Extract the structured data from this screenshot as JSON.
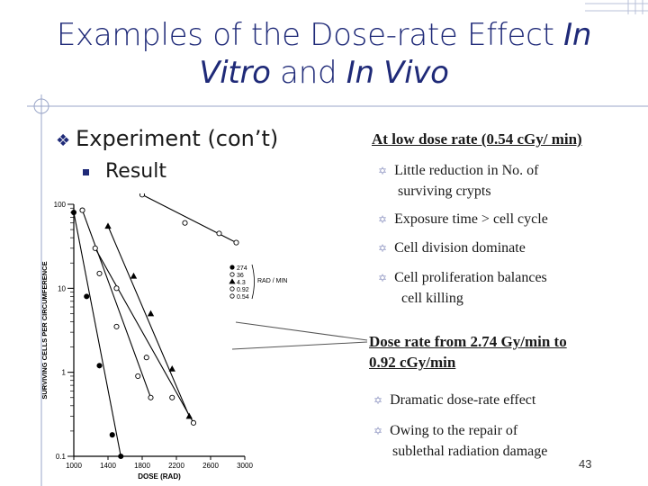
{
  "slide": {
    "title_part1": "Examples of the Dose-rate Effect ",
    "title_in": "In",
    "title_vitro": "Vitro",
    "title_and": " and ",
    "title_invivo": "In Vivo",
    "bullet_level1": "Experiment (con’t)",
    "bullet_level2": "Result",
    "low_heading": "At low dose rate (0.54 cGy/ min)",
    "low_points": [
      "Little reduction in No. of",
      "surviving crypts",
      "Exposure time > cell cycle",
      "Cell division dominate",
      "Cell proliferation balances",
      "cell killing"
    ],
    "mid_heading_line1": "Dose rate from 2.74 Gy/min to",
    "mid_heading_line2": "0.92 cGy/min",
    "mid_points": [
      "Dramatic dose-rate effect",
      "Owing to the repair of",
      "sublethal radiation damage"
    ],
    "page_number": "43"
  },
  "chart_data": {
    "type": "scatter",
    "title": "",
    "xlabel": "DOSE (RAD)",
    "ylabel": "SURVIVING CELLS PER CIRCUMFERENCE",
    "x_ticks": [
      "1000",
      "1400",
      "1800",
      "2200",
      "2600",
      "3000"
    ],
    "y_ticks": [
      "100",
      "10",
      "1",
      "0.1"
    ],
    "y_scale": "log",
    "xlim": [
      1000,
      3000
    ],
    "ylim": [
      0.1,
      100
    ],
    "legend_title": "RAD / MIN",
    "legend_position": "right",
    "series": [
      {
        "name": "274",
        "x": [
          1000,
          1150,
          1300,
          1450,
          1550
        ],
        "y": [
          80,
          8,
          1.2,
          0.18,
          0.1
        ]
      },
      {
        "name": "36",
        "x": [
          1100,
          1300,
          1500,
          1750,
          1900
        ],
        "y": [
          85,
          15,
          3.5,
          0.9,
          0.5
        ]
      },
      {
        "name": "4.3",
        "x": [
          1400,
          1700,
          1900,
          2150,
          2350
        ],
        "y": [
          55,
          14,
          5,
          1.1,
          0.3
        ]
      },
      {
        "name": "0.92",
        "x": [
          1250,
          1500,
          1850,
          2150,
          2400
        ],
        "y": [
          30,
          10,
          1.5,
          0.5,
          0.25
        ]
      },
      {
        "name": "0.54",
        "x": [
          1800,
          2300,
          2700,
          2900
        ],
        "y": [
          130,
          60,
          45,
          35
        ]
      }
    ]
  }
}
